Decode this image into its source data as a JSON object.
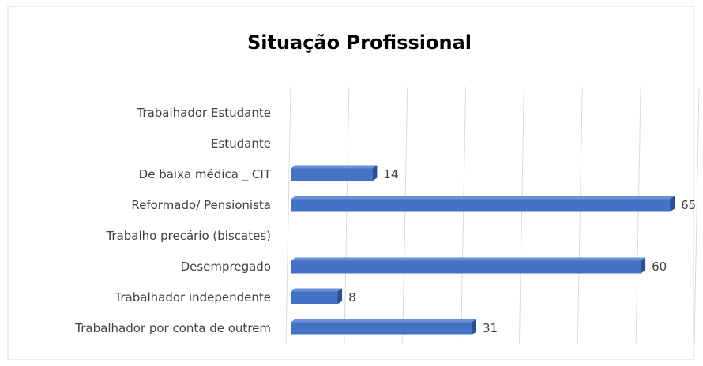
{
  "chart_data": {
    "type": "bar",
    "orientation": "horizontal",
    "title": "Situação Profissional",
    "categories": [
      "Trabalhador Estudante",
      "Estudante",
      "De baixa médica _ CIT",
      "Reformado/ Pensionista",
      "Trabalho precário (biscates)",
      "Desempregado",
      "Trabalhador independente",
      "Trabalhador por conta de outrem"
    ],
    "values": [
      null,
      null,
      14,
      65,
      null,
      60,
      8,
      31
    ],
    "color": "#4472c4",
    "xlim": [
      0,
      70
    ],
    "xticks": [
      0,
      10,
      20,
      30,
      40,
      50,
      60,
      70
    ],
    "grid": true
  }
}
